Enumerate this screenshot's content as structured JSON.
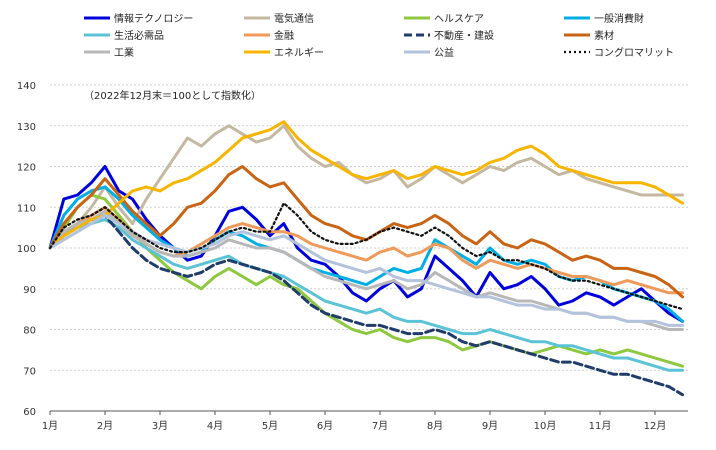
{
  "chart_data": {
    "type": "line",
    "note": "（2022年12月末＝100として指数化）",
    "xlabel": "",
    "ylabel": "",
    "ylim": [
      60,
      140
    ],
    "y_ticks": [
      60,
      70,
      80,
      90,
      100,
      110,
      120,
      130,
      140
    ],
    "x_ticks": [
      {
        "label": "1月",
        "t": 0
      },
      {
        "label": "2月",
        "t": 1
      },
      {
        "label": "3月",
        "t": 2
      },
      {
        "label": "4月",
        "t": 3
      },
      {
        "label": "5月",
        "t": 4
      },
      {
        "label": "6月",
        "t": 5
      },
      {
        "label": "7月",
        "t": 6
      },
      {
        "label": "8月",
        "t": 7
      },
      {
        "label": "9月",
        "t": 8
      },
      {
        "label": "10月",
        "t": 9
      },
      {
        "label": "11月",
        "t": 10
      },
      {
        "label": "12月",
        "t": 11
      }
    ],
    "x": [
      0,
      0.25,
      0.5,
      0.75,
      1,
      1.25,
      1.5,
      1.75,
      2,
      2.25,
      2.5,
      2.75,
      3,
      3.25,
      3.5,
      3.75,
      4,
      4.25,
      4.5,
      4.75,
      5,
      5.25,
      5.5,
      5.75,
      6,
      6.25,
      6.5,
      6.75,
      7,
      7.25,
      7.5,
      7.75,
      8,
      8.25,
      8.5,
      8.75,
      9,
      9.25,
      9.5,
      9.75,
      10,
      10.25,
      10.5,
      10.75,
      11,
      11.25,
      11.5
    ],
    "grid": true,
    "legend_position": "top",
    "series": [
      {
        "name": "情報テクノロジー",
        "color": "#0000dd",
        "width": 3,
        "dash": "",
        "values": [
          100,
          112,
          113,
          116,
          120,
          114,
          112,
          107,
          103,
          100,
          97,
          98,
          103,
          109,
          110,
          107,
          103,
          106,
          100,
          97,
          96,
          93,
          89,
          87,
          90,
          92,
          88,
          90,
          98,
          95,
          92,
          88,
          94,
          90,
          91,
          93,
          90,
          86,
          87,
          89,
          88,
          86,
          88,
          90,
          87,
          84,
          82
        ]
      },
      {
        "name": "電気通信",
        "color": "#c4b9a0",
        "width": 3,
        "dash": "",
        "values": [
          100,
          103,
          106,
          110,
          115,
          110,
          106,
          112,
          117,
          122,
          127,
          125,
          128,
          130,
          128,
          126,
          127,
          130,
          125,
          122,
          120,
          121,
          118,
          116,
          117,
          119,
          115,
          117,
          120,
          118,
          116,
          118,
          120,
          119,
          121,
          122,
          120,
          118,
          119,
          117,
          116,
          115,
          114,
          113,
          113,
          113,
          113
        ]
      },
      {
        "name": "ヘルスケア",
        "color": "#8dc83f",
        "width": 3,
        "dash": "",
        "values": [
          100,
          105,
          110,
          113,
          112,
          108,
          104,
          100,
          97,
          94,
          92,
          90,
          93,
          95,
          93,
          91,
          93,
          91,
          90,
          87,
          84,
          82,
          80,
          79,
          80,
          78,
          77,
          78,
          78,
          77,
          75,
          76,
          77,
          76,
          75,
          74,
          75,
          76,
          75,
          74,
          75,
          74,
          75,
          74,
          73,
          72,
          71
        ]
      },
      {
        "name": "一般消費財",
        "color": "#00aee6",
        "width": 3,
        "dash": "",
        "values": [
          100,
          108,
          112,
          114,
          115,
          112,
          108,
          105,
          102,
          100,
          98,
          99,
          102,
          104,
          103,
          101,
          100,
          99,
          97,
          95,
          94,
          93,
          92,
          91,
          93,
          95,
          94,
          95,
          102,
          100,
          98,
          96,
          100,
          97,
          96,
          97,
          96,
          93,
          92,
          93,
          92,
          90,
          89,
          88,
          87,
          85,
          82
        ]
      },
      {
        "name": "生活必需品",
        "color": "#5cc3d6",
        "width": 3,
        "dash": "",
        "values": [
          100,
          103,
          105,
          106,
          107,
          105,
          102,
          100,
          98,
          96,
          95,
          96,
          97,
          98,
          96,
          95,
          94,
          93,
          91,
          89,
          87,
          86,
          85,
          84,
          85,
          83,
          82,
          82,
          81,
          80,
          79,
          79,
          80,
          79,
          78,
          77,
          77,
          76,
          76,
          75,
          74,
          73,
          73,
          72,
          71,
          70,
          70
        ]
      },
      {
        "name": "金融",
        "color": "#ee9a5a",
        "width": 3,
        "dash": "",
        "values": [
          100,
          104,
          106,
          108,
          110,
          107,
          104,
          101,
          99,
          98,
          99,
          101,
          103,
          105,
          106,
          105,
          104,
          104,
          103,
          101,
          100,
          99,
          98,
          97,
          99,
          100,
          98,
          99,
          101,
          100,
          97,
          95,
          97,
          96,
          95,
          96,
          95,
          94,
          93,
          93,
          92,
          91,
          92,
          91,
          90,
          89,
          89
        ]
      },
      {
        "name": "不動産・建設",
        "color": "#1f3c6a",
        "width": 3,
        "dash": "8,4",
        "values": [
          100,
          104,
          106,
          107,
          108,
          104,
          100,
          97,
          95,
          94,
          93,
          94,
          96,
          97,
          96,
          95,
          94,
          92,
          89,
          86,
          84,
          83,
          82,
          81,
          81,
          80,
          79,
          79,
          80,
          79,
          77,
          76,
          77,
          76,
          75,
          74,
          73,
          72,
          72,
          71,
          70,
          69,
          69,
          68,
          67,
          66,
          64
        ]
      },
      {
        "name": "素材",
        "color": "#c86414",
        "width": 3,
        "dash": "",
        "values": [
          100,
          106,
          110,
          113,
          117,
          113,
          109,
          106,
          103,
          106,
          110,
          111,
          114,
          118,
          120,
          117,
          115,
          116,
          112,
          108,
          106,
          105,
          103,
          102,
          104,
          106,
          105,
          106,
          108,
          106,
          103,
          101,
          104,
          101,
          100,
          102,
          101,
          99,
          97,
          98,
          97,
          95,
          95,
          94,
          93,
          91,
          88
        ]
      },
      {
        "name": "工業",
        "color": "#b8b8b8",
        "width": 3,
        "dash": "",
        "values": [
          100,
          104,
          106,
          107,
          109,
          106,
          103,
          101,
          99,
          98,
          98,
          99,
          100,
          102,
          101,
          100,
          100,
          99,
          97,
          95,
          93,
          92,
          91,
          90,
          91,
          92,
          90,
          91,
          94,
          92,
          90,
          88,
          89,
          88,
          87,
          87,
          86,
          85,
          84,
          84,
          83,
          83,
          82,
          82,
          81,
          80,
          80
        ]
      },
      {
        "name": "エネルギー",
        "color": "#f7b500",
        "width": 3,
        "dash": "",
        "values": [
          100,
          103,
          105,
          107,
          108,
          111,
          114,
          115,
          114,
          116,
          117,
          119,
          121,
          124,
          127,
          128,
          129,
          131,
          127,
          124,
          122,
          120,
          118,
          117,
          118,
          119,
          117,
          118,
          120,
          119,
          118,
          119,
          121,
          122,
          124,
          125,
          123,
          120,
          119,
          118,
          117,
          116,
          116,
          116,
          115,
          113,
          111
        ]
      },
      {
        "name": "公益",
        "color": "#b3c3dc",
        "width": 3,
        "dash": "",
        "values": [
          100,
          102,
          104,
          106,
          108,
          106,
          104,
          102,
          101,
          100,
          99,
          100,
          101,
          103,
          104,
          103,
          102,
          103,
          101,
          99,
          97,
          96,
          95,
          94,
          95,
          93,
          92,
          92,
          91,
          90,
          89,
          88,
          88,
          87,
          86,
          86,
          85,
          85,
          84,
          84,
          83,
          83,
          82,
          82,
          82,
          81,
          81
        ]
      },
      {
        "name": "コングロマリット",
        "color": "#111111",
        "width": 2.2,
        "dash": "2,3",
        "values": [
          100,
          105,
          107,
          108,
          110,
          107,
          104,
          102,
          100,
          99,
          99,
          100,
          102,
          104,
          105,
          104,
          104,
          111,
          108,
          104,
          102,
          101,
          101,
          102,
          104,
          105,
          104,
          103,
          105,
          103,
          100,
          98,
          99,
          97,
          97,
          96,
          95,
          93,
          92,
          92,
          91,
          90,
          89,
          88,
          87,
          86,
          85
        ]
      }
    ]
  }
}
